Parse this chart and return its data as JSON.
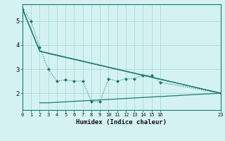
{
  "xlabel": "Humidex (Indice chaleur)",
  "background_color": "#d5f2f2",
  "grid_color": "#aad8d8",
  "line_color": "#1a7a6e",
  "spine_color": "#1a7a6e",
  "xlim": [
    0,
    23
  ],
  "ylim": [
    1.3,
    5.7
  ],
  "yticks": [
    2,
    3,
    4,
    5
  ],
  "xtick_positions": [
    0,
    1,
    2,
    3,
    4,
    5,
    6,
    7,
    8,
    9,
    10,
    11,
    12,
    13,
    14,
    15,
    16,
    23
  ],
  "xtick_labels": [
    "0",
    "1",
    "2",
    "3",
    "4",
    "5",
    "6",
    "7",
    "8",
    "9",
    "10",
    "11",
    "12",
    "13",
    "14",
    "15",
    "16",
    "23"
  ],
  "series1_x": [
    0,
    1,
    2,
    3,
    4,
    5,
    6,
    7,
    8,
    9,
    10,
    11,
    12,
    13,
    14,
    15,
    16,
    23
  ],
  "series1_y": [
    5.5,
    5.0,
    3.9,
    3.0,
    2.5,
    2.55,
    2.5,
    2.5,
    1.65,
    1.65,
    2.6,
    2.5,
    2.6,
    2.6,
    2.75,
    2.75,
    2.45,
    2.0
  ],
  "series2_x": [
    0,
    2,
    3,
    23
  ],
  "series2_y": [
    5.5,
    3.75,
    3.65,
    2.0
  ],
  "series3_x": [
    0,
    2,
    23
  ],
  "series3_y": [
    5.5,
    3.75,
    2.0
  ],
  "series4_x": [
    2,
    3,
    23
  ],
  "series4_y": [
    1.6,
    1.6,
    2.0
  ]
}
